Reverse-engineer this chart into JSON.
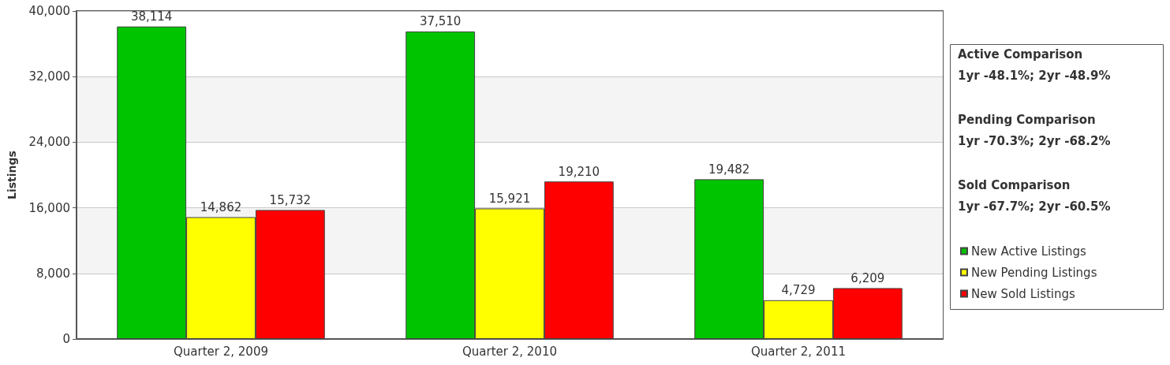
{
  "chart_data": {
    "type": "bar",
    "ylabel": "Listings",
    "categories": [
      "Quarter 2, 2009",
      "Quarter 2, 2010",
      "Quarter 2, 2011"
    ],
    "series": [
      {
        "name": "New Active Listings",
        "color": "#00c400",
        "values": [
          38114,
          37510,
          19482
        ],
        "value_labels": [
          "38,114",
          "37,510",
          "19,482"
        ]
      },
      {
        "name": "New Pending Listings",
        "color": "#ffff00",
        "values": [
          14862,
          15921,
          4729
        ],
        "value_labels": [
          "14,862",
          "15,921",
          "4,729"
        ]
      },
      {
        "name": "New Sold Listings",
        "color": "#ff0000",
        "values": [
          15732,
          19210,
          6209
        ],
        "value_labels": [
          "15,732",
          "19,210",
          "6,209"
        ]
      }
    ],
    "ylim": [
      0,
      40000
    ],
    "yticks": [
      0,
      {
        "value": 8000,
        "label": "8,000"
      },
      {
        "value": 16000,
        "label": "16,000"
      },
      {
        "value": 24000,
        "label": "24,000"
      },
      {
        "value": 32000,
        "label": "32,000"
      },
      {
        "value": 40000,
        "label": "40,000"
      }
    ],
    "grid": "y",
    "legend": "right",
    "annotations": [
      "Active Comparison",
      "1yr -48.1%; 2yr -48.9%",
      "Pending Comparison",
      "1yr -70.3%; 2yr -68.2%",
      "Sold Comparison",
      "1yr -67.7%; 2yr -60.5%"
    ]
  }
}
